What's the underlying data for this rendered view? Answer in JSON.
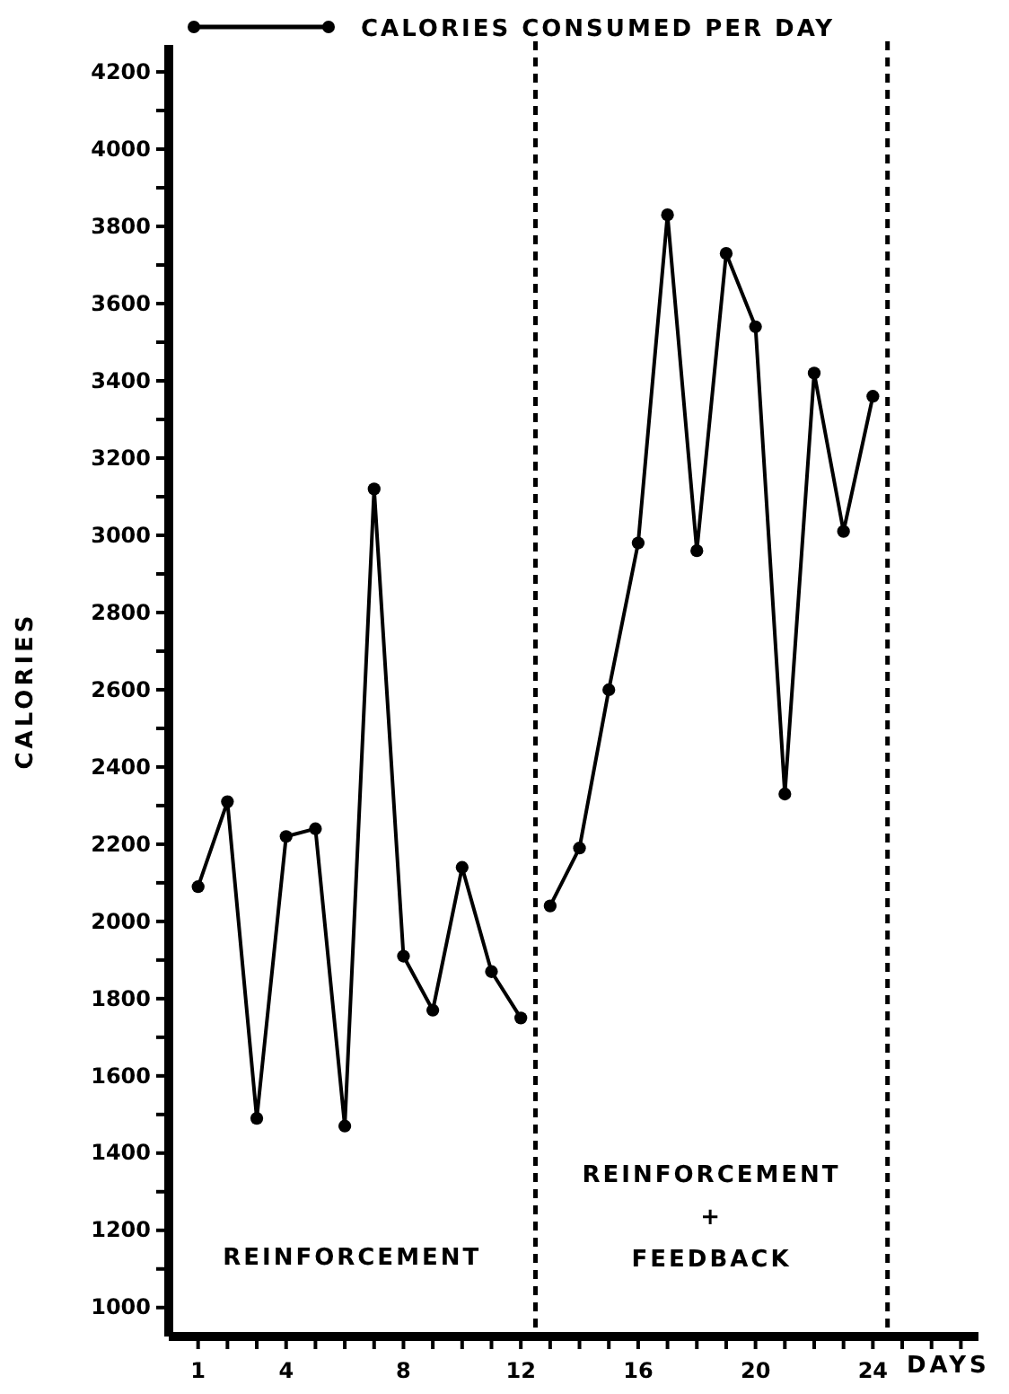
{
  "chart_data": {
    "type": "line",
    "xlabel": "DAYS",
    "ylabel": "CALORIES",
    "x": [
      1,
      2,
      3,
      4,
      5,
      6,
      7,
      8,
      9,
      10,
      11,
      12,
      12.5,
      13,
      14,
      15,
      16,
      17,
      18,
      19,
      20,
      21,
      22,
      23,
      24
    ],
    "series": [
      {
        "name": "CALORIES CONSUMED PER DAY",
        "color": "#000000",
        "values": [
          2090,
          2310,
          1490,
          2220,
          2240,
          1470,
          3120,
          1910,
          1770,
          2140,
          1870,
          1750,
          null,
          2040,
          2190,
          2600,
          2980,
          3830,
          2960,
          3730,
          3540,
          2330,
          3420,
          3010,
          3360
        ]
      }
    ],
    "xlim": [
      0,
      27.6
    ],
    "xticks": [
      {
        "value": 1,
        "label": "1"
      },
      {
        "value": 2,
        "label": null
      },
      {
        "value": 3,
        "label": null
      },
      4,
      {
        "value": 5,
        "label": null
      },
      {
        "value": 6,
        "label": null
      },
      {
        "value": 7,
        "label": null
      },
      8,
      {
        "value": 9,
        "label": null
      },
      {
        "value": 10,
        "label": null
      },
      {
        "value": 11,
        "label": null
      },
      12,
      {
        "value": 13,
        "label": null
      },
      {
        "value": 14,
        "label": null
      },
      {
        "value": 15,
        "label": null
      },
      16,
      {
        "value": 17,
        "label": null
      },
      {
        "value": 18,
        "label": null
      },
      {
        "value": 19,
        "label": null
      },
      20,
      {
        "value": 21,
        "label": null
      },
      {
        "value": 22,
        "label": null
      },
      {
        "value": 23,
        "label": null
      },
      24,
      {
        "value": 25,
        "label": null
      },
      {
        "value": 26,
        "label": null
      },
      {
        "value": 27,
        "label": null
      }
    ],
    "ylim": [
      925,
      4270
    ],
    "yticks": [
      1000,
      {
        "value": 1100,
        "label": null
      },
      1200,
      {
        "value": 1300,
        "label": null
      },
      1400,
      {
        "value": 1500,
        "label": null
      },
      1600,
      {
        "value": 1700,
        "label": null
      },
      1800,
      {
        "value": 1900,
        "label": null
      },
      2000,
      {
        "value": 2100,
        "label": null
      },
      2200,
      {
        "value": 2300,
        "label": null
      },
      2400,
      {
        "value": 2500,
        "label": null
      },
      2600,
      {
        "value": 2700,
        "label": null
      },
      2800,
      {
        "value": 2900,
        "label": null
      },
      3000,
      {
        "value": 3100,
        "label": null
      },
      3200,
      {
        "value": 3300,
        "label": null
      },
      3400,
      {
        "value": 3500,
        "label": null
      },
      3600,
      {
        "value": 3700,
        "label": null
      },
      3800,
      {
        "value": 3900,
        "label": null
      },
      4000,
      {
        "value": 4100,
        "label": null
      },
      4200
    ],
    "ref_lines": [
      {
        "axis": "x",
        "value": 12.5,
        "line_style": "dashed"
      },
      {
        "axis": "x",
        "value": 24.5,
        "line_style": "dashed"
      }
    ],
    "annotations": [
      "REINFORCEMENT",
      "REINFORCEMENT\n+\nFEEDBACK"
    ],
    "marker": "circle",
    "line_style": "solid",
    "grid": false,
    "legend": "top"
  }
}
